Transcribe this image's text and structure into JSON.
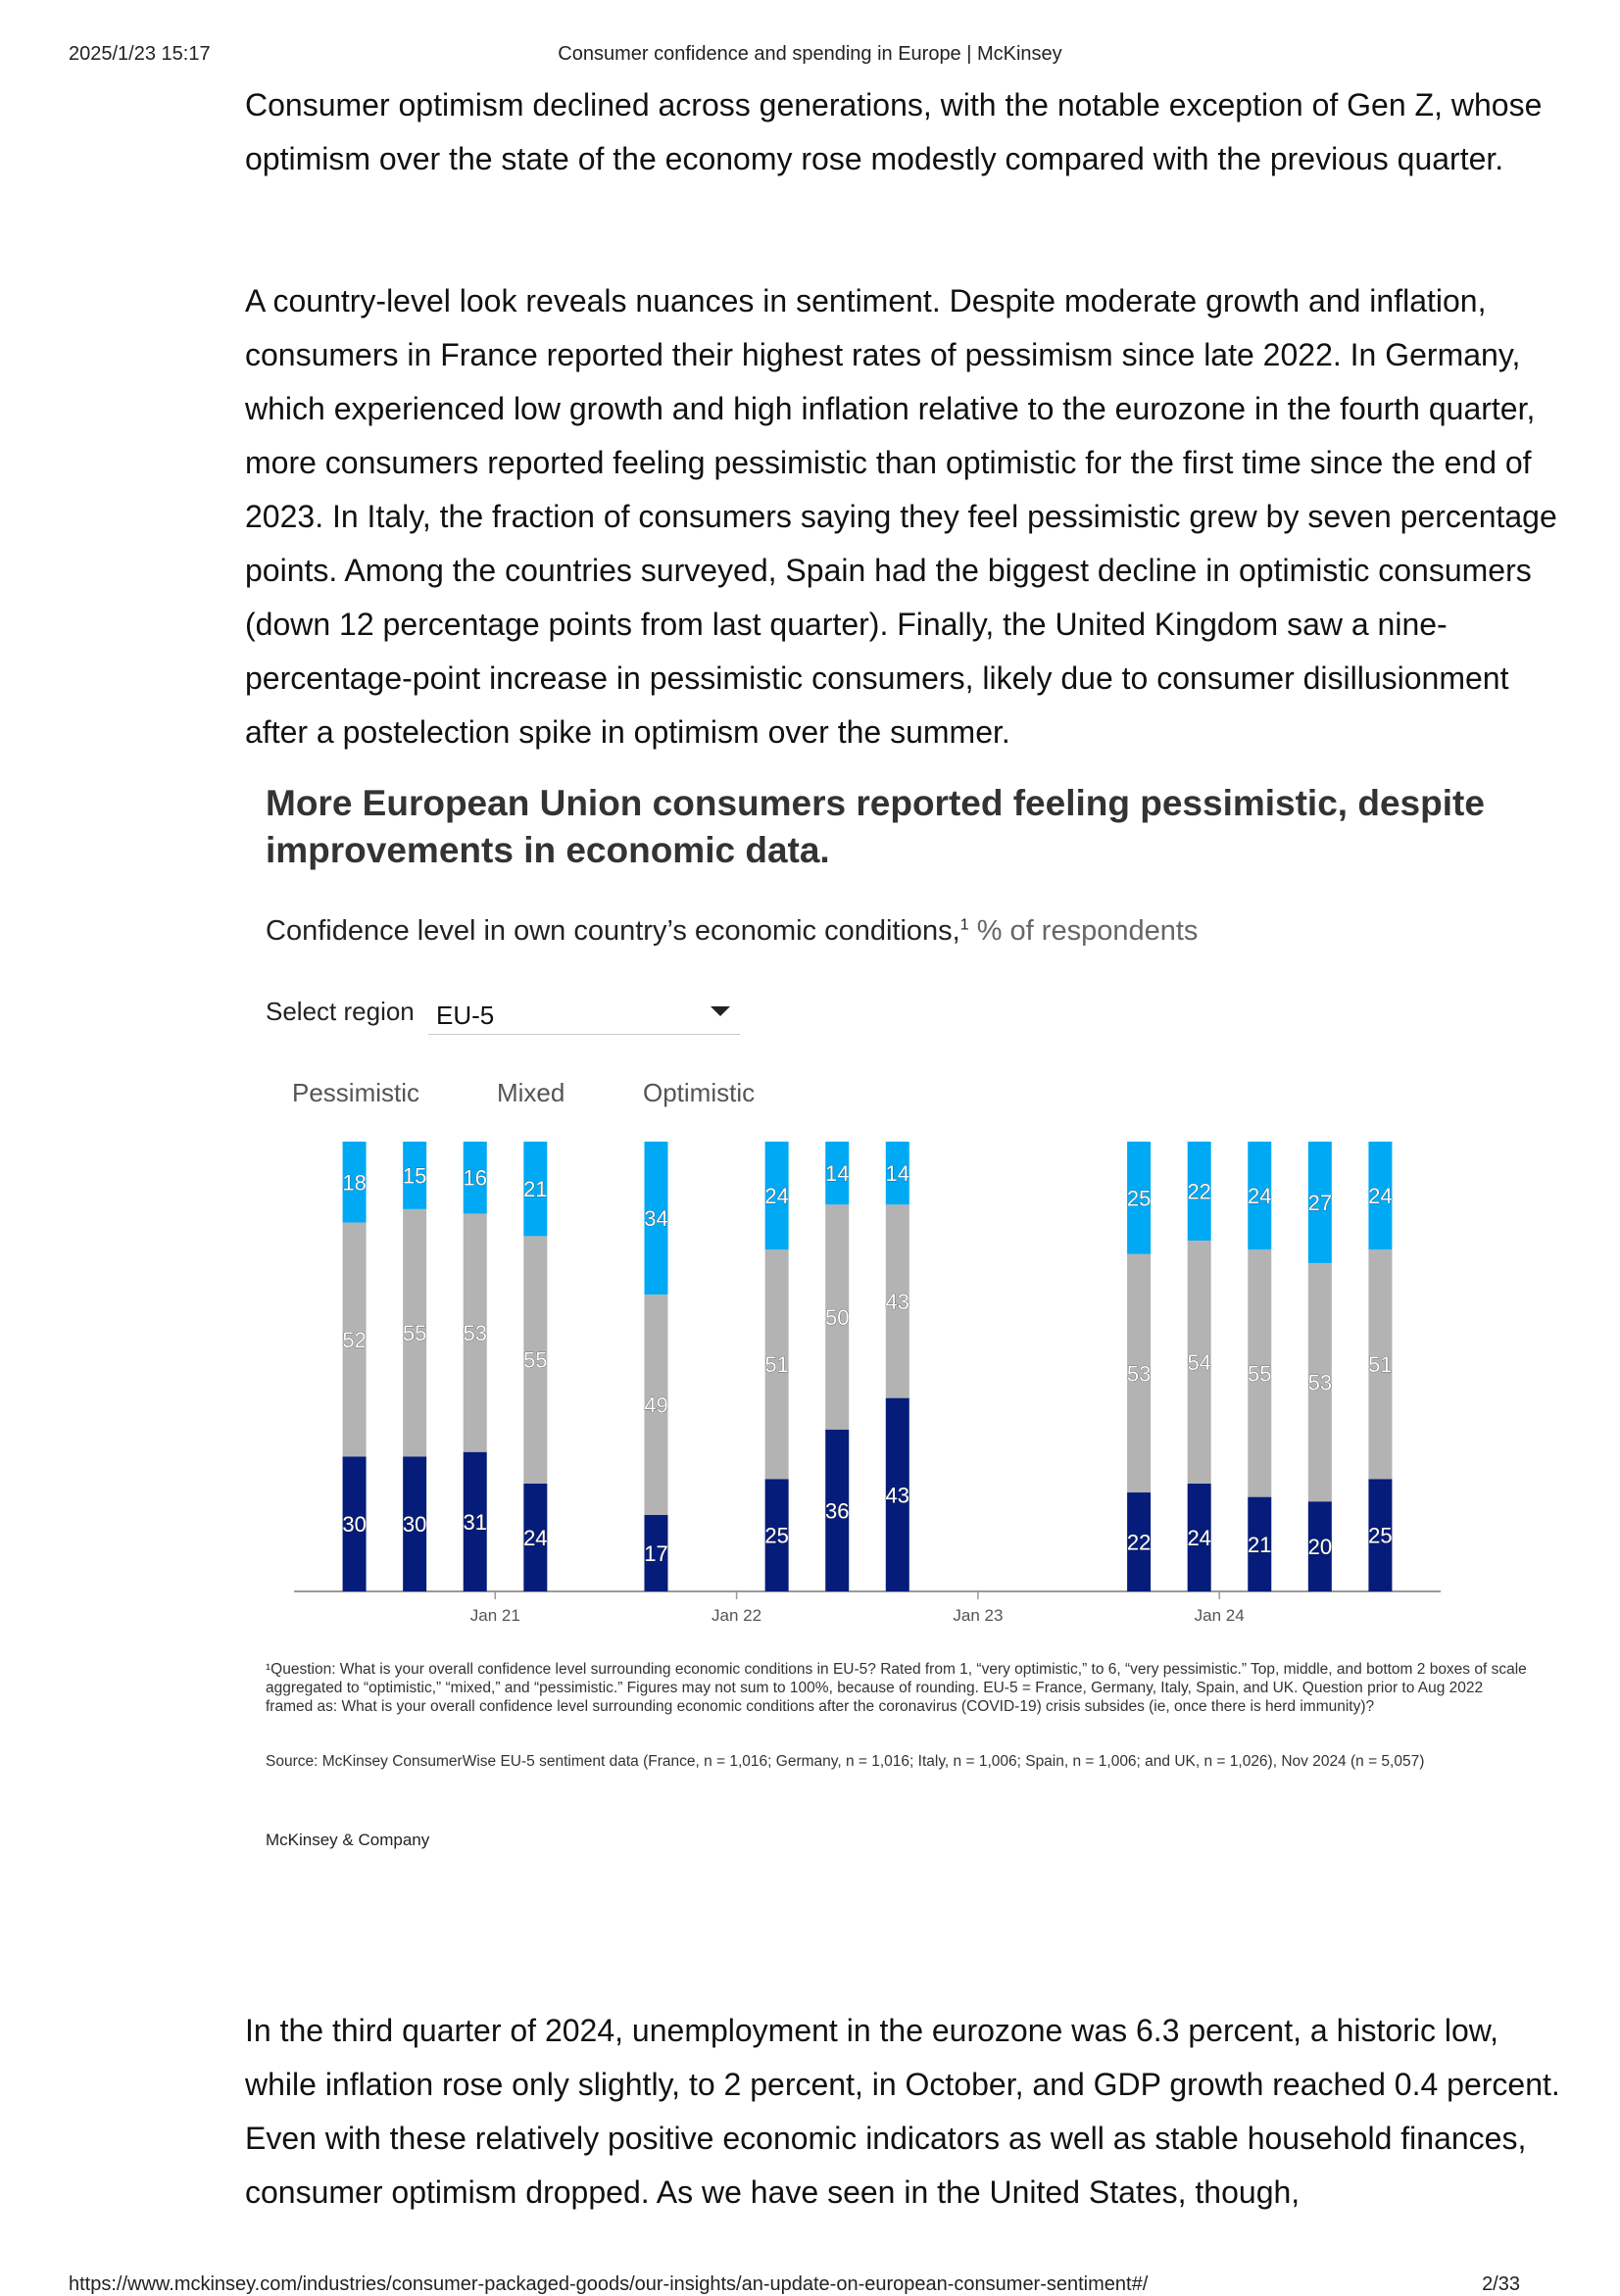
{
  "browser": {
    "timestamp": "2025/1/23 15:17",
    "page_title": "Consumer confidence and spending in Europe | McKinsey",
    "url": "https://www.mckinsey.com/industries/consumer-packaged-goods/our-insights/an-update-on-european-consumer-sentiment#/",
    "page_number": "2/33"
  },
  "article": {
    "p1": "Consumer optimism declined across generations, with the notable exception of Gen Z, whose optimism over the state of the economy rose modestly compared with the previous quarter.",
    "p2": "A country-level look reveals nuances in sentiment. Despite moderate growth and inflation, consumers in France reported their highest rates of pessimism since late 2022. In Germany, which experienced low growth and high inflation relative to the eurozone in the fourth quarter, more consumers reported feeling pessimistic than optimistic for the first time since the end of 2023. In Italy, the fraction of consumers saying they feel pessimistic grew by seven percentage points. Among the countries surveyed, Spain had the biggest decline in optimistic consumers (down 12 percentage points from last quarter). Finally, the United Kingdom saw a nine-percentage-point increase in pessimistic consumers, likely due to consumer disillusionment after a postelection spike in optimism over the summer.",
    "p3": "In the third quarter of 2024, unemployment in the eurozone was 6.3 percent, a historic low, while inflation rose only slightly, to 2 percent, in October, and GDP growth reached 0.4 percent. Even with these relatively positive economic indicators as well as stable household finances, consumer optimism dropped. As we have seen in the United States, though,"
  },
  "exhibit": {
    "title": "More European Union consumers reported feeling pessimistic, despite improvements in economic data.",
    "subtitle": "Confidence level in own country’s economic conditions,",
    "footnote_mark": "1",
    "unit": " % of respondents",
    "select_label": "Select region",
    "select_value": "EU-5",
    "footnote": "¹Question: What is your overall confidence level surrounding economic conditions in EU-5? Rated from 1, “very optimistic,” to 6, “very pessimistic.” Top, middle, and bottom 2 boxes of scale aggregated to “optimistic,” “mixed,” and “pessimistic.” Figures may not sum to 100%, because of rounding. EU-5 = France, Germany, Italy, Spain, and UK. Question prior to Aug 2022 framed as: What is your overall confidence level surrounding economic conditions after the coronavirus (COVID-19) crisis subsides (ie, once there is herd immunity)?",
    "source": "Source: McKinsey ConsumerWise EU-5 sentiment data (France, n = 1,016; Germany, n = 1,016; Italy, n = 1,006; Spain, n = 1,006; and UK, n = 1,026), Nov 2024 (n = 5,057)",
    "brand": "McKinsey & Company"
  },
  "chart_data": {
    "type": "bar",
    "stacked": true,
    "x_axis_ticks": [
      "Jan 21",
      "Jan 22",
      "Jan 23",
      "Jan 24"
    ],
    "x_axis_tick_dates": [
      "2021-01",
      "2022-01",
      "2023-01",
      "2024-01"
    ],
    "x_range": [
      "2020-03",
      "2024-12"
    ],
    "categories": [
      "2020-06",
      "2020-09",
      "2020-12",
      "2021-03",
      "2021-09",
      "2022-03",
      "2022-06",
      "2022-09",
      "2023-09",
      "2023-12",
      "2024-03",
      "2024-06",
      "2024-09"
    ],
    "series": [
      {
        "name": "Pessimistic",
        "color": "#051c7a",
        "values": [
          30,
          30,
          31,
          24,
          17,
          25,
          36,
          43,
          22,
          24,
          21,
          20,
          25
        ]
      },
      {
        "name": "Mixed",
        "color": "#b3b3b3",
        "values": [
          52,
          55,
          53,
          55,
          49,
          51,
          50,
          43,
          53,
          54,
          55,
          53,
          51
        ]
      },
      {
        "name": "Optimistic",
        "color": "#00a9f4",
        "values": [
          18,
          15,
          16,
          21,
          34,
          24,
          14,
          14,
          25,
          22,
          24,
          27,
          24
        ]
      }
    ],
    "ylim": [
      0,
      100
    ],
    "legend_position": "top-left"
  }
}
